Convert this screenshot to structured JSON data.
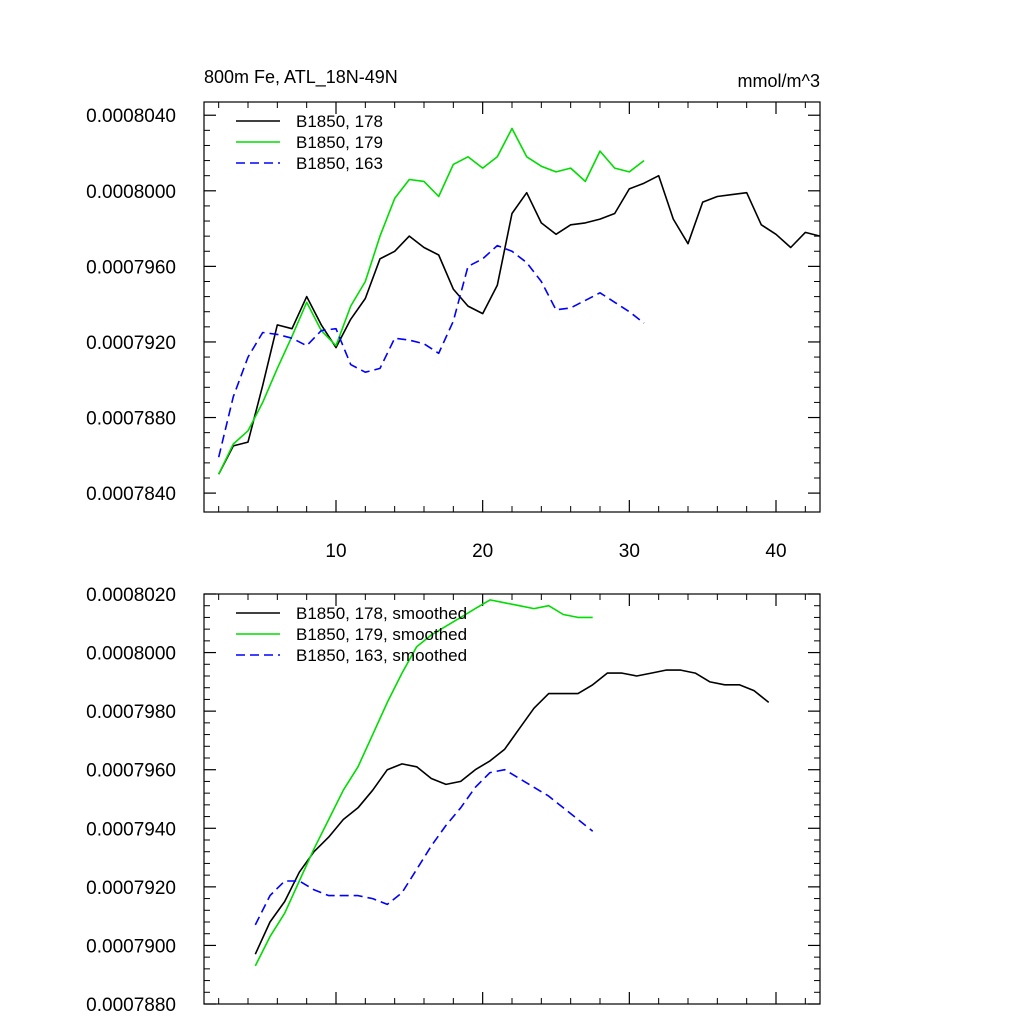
{
  "chart_data": [
    {
      "type": "line",
      "title": "800m Fe, ATL_18N-49N",
      "units": "mmol/m^3",
      "xlim": [
        1,
        43
      ],
      "ylim": [
        0.000783,
        0.0008047
      ],
      "x_ticks": [
        10,
        20,
        30,
        40
      ],
      "x_tick_labels": [
        "10",
        "20",
        "30",
        "40"
      ],
      "y_ticks": [
        0.000784,
        0.000788,
        0.000792,
        0.000796,
        0.0008,
        0.000804
      ],
      "y_tick_labels": [
        "0.0007840",
        "0.0007880",
        "0.0007920",
        "0.0007960",
        "0.0008000",
        "0.0008040"
      ],
      "legend_position": "top-left",
      "series": [
        {
          "name": "B1850, 178",
          "color": "#000000",
          "dash": "solid",
          "x": [
            2,
            3,
            4,
            5,
            6,
            7,
            8,
            9,
            10,
            11,
            12,
            13,
            14,
            15,
            16,
            17,
            18,
            19,
            20,
            21,
            22,
            23,
            24,
            25,
            26,
            27,
            28,
            29,
            30,
            31,
            32,
            33,
            34,
            35,
            36,
            37,
            38,
            39,
            40,
            41,
            42,
            43
          ],
          "y": [
            0.000785,
            0.0007865,
            0.0007867,
            0.0007897,
            0.0007929,
            0.0007927,
            0.0007944,
            0.0007929,
            0.0007917,
            0.0007932,
            0.0007943,
            0.0007964,
            0.0007968,
            0.0007976,
            0.000797,
            0.0007966,
            0.0007948,
            0.0007939,
            0.0007935,
            0.000795,
            0.0007988,
            0.0007999,
            0.0007983,
            0.0007977,
            0.0007982,
            0.0007983,
            0.0007985,
            0.0007988,
            0.0008001,
            0.0008004,
            0.0008008,
            0.0007985,
            0.0007972,
            0.0007994,
            0.0007997,
            0.0007998,
            0.0007999,
            0.0007982,
            0.0007977,
            0.000797,
            0.0007978,
            0.0007976
          ]
        },
        {
          "name": "B1850, 179",
          "color": "#00dd00",
          "dash": "solid",
          "x": [
            2,
            3,
            4,
            5,
            6,
            7,
            8,
            9,
            10,
            11,
            12,
            13,
            14,
            15,
            16,
            17,
            18,
            19,
            20,
            21,
            22,
            23,
            24,
            25,
            26,
            27,
            28,
            29,
            30,
            31
          ],
          "y": [
            0.000785,
            0.0007866,
            0.0007873,
            0.0007888,
            0.0007906,
            0.0007923,
            0.0007941,
            0.0007926,
            0.0007918,
            0.0007939,
            0.0007952,
            0.0007976,
            0.0007996,
            0.0008006,
            0.0008005,
            0.0007997,
            0.0008014,
            0.0008018,
            0.0008012,
            0.0008018,
            0.0008033,
            0.0008018,
            0.0008013,
            0.000801,
            0.0008012,
            0.0008005,
            0.0008021,
            0.0008012,
            0.000801,
            0.0008016
          ]
        },
        {
          "name": "B1850, 163",
          "color": "#0000ff",
          "dash": "dashed",
          "x": [
            2,
            3,
            4,
            5,
            6,
            7,
            8,
            9,
            10,
            11,
            12,
            13,
            14,
            15,
            16,
            17,
            18,
            19,
            20,
            21,
            22,
            23,
            24,
            25,
            26,
            27,
            28,
            29,
            30,
            31
          ],
          "y": [
            0.0007859,
            0.0007891,
            0.0007912,
            0.0007925,
            0.0007924,
            0.0007922,
            0.0007918,
            0.0007926,
            0.0007927,
            0.0007908,
            0.0007904,
            0.0007906,
            0.0007922,
            0.0007921,
            0.0007919,
            0.0007914,
            0.0007931,
            0.000796,
            0.0007964,
            0.0007971,
            0.0007968,
            0.0007962,
            0.0007952,
            0.0007937,
            0.0007938,
            0.0007942,
            0.0007946,
            0.0007941,
            0.0007936,
            0.000793
          ]
        }
      ]
    },
    {
      "type": "line",
      "title": "",
      "xlim": [
        1,
        43
      ],
      "ylim": [
        0.000788,
        0.000802
      ],
      "x_ticks": [
        10,
        20,
        30,
        40
      ],
      "x_tick_labels": [],
      "y_ticks": [
        0.000788,
        0.00079,
        0.000792,
        0.000794,
        0.000796,
        0.000798,
        0.0008,
        0.000802
      ],
      "y_tick_labels": [
        "0.0007880",
        "0.0007900",
        "0.0007920",
        "0.0007940",
        "0.0007960",
        "0.0007980",
        "0.0008000",
        "0.0008020"
      ],
      "legend_position": "top-left",
      "series": [
        {
          "name": "B1850, 178, smoothed",
          "color": "#000000",
          "dash": "solid",
          "x": [
            4.5,
            5.5,
            6.5,
            7.5,
            8.5,
            9.5,
            10.5,
            11.5,
            12.5,
            13.5,
            14.5,
            15.5,
            16.5,
            17.5,
            18.5,
            19.5,
            20.5,
            21.5,
            22.5,
            23.5,
            24.5,
            25.5,
            26.5,
            27.5,
            28.5,
            29.5,
            30.5,
            31.5,
            32.5,
            33.5,
            34.5,
            35.5,
            36.5,
            37.5,
            38.5,
            39.5
          ],
          "y": [
            0.0007897,
            0.0007908,
            0.0007915,
            0.0007925,
            0.0007932,
            0.0007937,
            0.0007943,
            0.0007947,
            0.0007953,
            0.000796,
            0.0007962,
            0.0007961,
            0.0007957,
            0.0007955,
            0.0007956,
            0.000796,
            0.0007963,
            0.0007967,
            0.0007974,
            0.0007981,
            0.0007986,
            0.0007986,
            0.0007986,
            0.0007989,
            0.0007993,
            0.0007993,
            0.0007992,
            0.0007993,
            0.0007994,
            0.0007994,
            0.0007993,
            0.000799,
            0.0007989,
            0.0007989,
            0.0007987,
            0.0007983
          ]
        },
        {
          "name": "B1850, 179, smoothed",
          "color": "#00dd00",
          "dash": "solid",
          "x": [
            4.5,
            5.5,
            6.5,
            7.5,
            8.5,
            9.5,
            10.5,
            11.5,
            12.5,
            13.5,
            14.5,
            15.5,
            16.5,
            17.5,
            18.5,
            19.5,
            20.5,
            21.5,
            22.5,
            23.5,
            24.5,
            25.5,
            26.5,
            27.5
          ],
          "y": [
            0.0007893,
            0.0007903,
            0.0007911,
            0.0007922,
            0.0007933,
            0.0007943,
            0.0007953,
            0.0007961,
            0.0007972,
            0.0007983,
            0.0007993,
            0.0008002,
            0.0008006,
            0.0008009,
            0.0008012,
            0.0008015,
            0.0008018,
            0.0008017,
            0.0008016,
            0.0008015,
            0.0008016,
            0.0008013,
            0.0008012,
            0.0008012
          ]
        },
        {
          "name": "B1850, 163, smoothed",
          "color": "#0000ff",
          "dash": "dashed",
          "x": [
            4.5,
            5.5,
            6.5,
            7.5,
            8.5,
            9.5,
            10.5,
            11.5,
            12.5,
            13.5,
            14.5,
            15.5,
            16.5,
            17.5,
            18.5,
            19.5,
            20.5,
            21.5,
            22.5,
            23.5,
            24.5,
            25.5,
            26.5,
            27.5
          ],
          "y": [
            0.0007907,
            0.0007917,
            0.0007922,
            0.0007922,
            0.0007919,
            0.0007917,
            0.0007917,
            0.0007917,
            0.0007916,
            0.0007914,
            0.0007918,
            0.0007926,
            0.0007934,
            0.0007941,
            0.0007947,
            0.0007954,
            0.0007959,
            0.000796,
            0.0007957,
            0.0007954,
            0.0007951,
            0.0007947,
            0.0007943,
            0.0007939
          ]
        }
      ]
    }
  ]
}
